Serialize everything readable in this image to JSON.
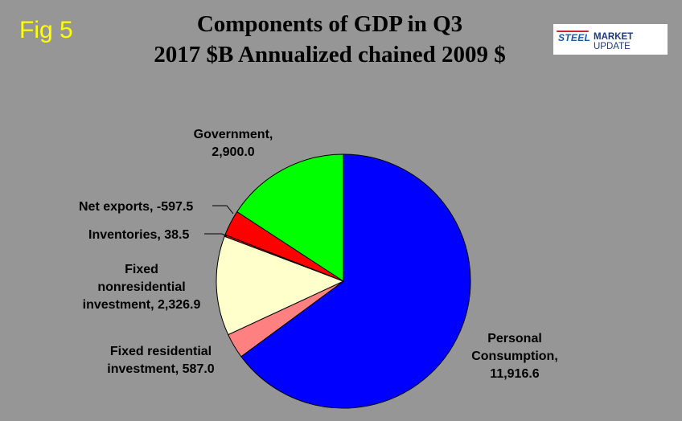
{
  "fig_label": "Fig 5",
  "logo": {
    "steel": "STEEL",
    "market": "MARKET",
    "update": "UPDATE"
  },
  "colors": {
    "background": "#969696",
    "fig_label": "#ffff00",
    "government": "#00ff00",
    "net_exports": "#ff0000",
    "inventories": "#ff0000",
    "nonresidential": "#ffffcc",
    "residential": "#ff8080",
    "personal": "#0000ff"
  },
  "chart_data": {
    "type": "pie",
    "title_line1": "Components of GDP in Q3",
    "title_line2": "2017 $B Annualized chained 2009 $",
    "slices": [
      {
        "name": "Personal Consumption",
        "value": 11916.6,
        "label_lines": [
          "Personal",
          "Consumption,",
          "11,916.6"
        ],
        "color": "#0000ff"
      },
      {
        "name": "Fixed residential investment",
        "value": 587.0,
        "label_lines": [
          "Fixed residential",
          "investment, 587.0"
        ],
        "color": "#ff8080"
      },
      {
        "name": "Fixed nonresidential investment",
        "value": 2326.9,
        "label_lines": [
          "Fixed",
          "nonresidential",
          "investment, 2,326.9"
        ],
        "color": "#ffffcc"
      },
      {
        "name": "Inventories",
        "value": 38.5,
        "label_lines": [
          "Inventories, 38.5"
        ],
        "color": "#ff0000"
      },
      {
        "name": "Net exports",
        "value": -597.5,
        "label_lines": [
          "Net exports, -597.5"
        ],
        "color": "#ff0000"
      },
      {
        "name": "Government",
        "value": 2900.0,
        "label_lines": [
          "Government,",
          "2,900.0"
        ],
        "color": "#00ff00"
      }
    ]
  }
}
